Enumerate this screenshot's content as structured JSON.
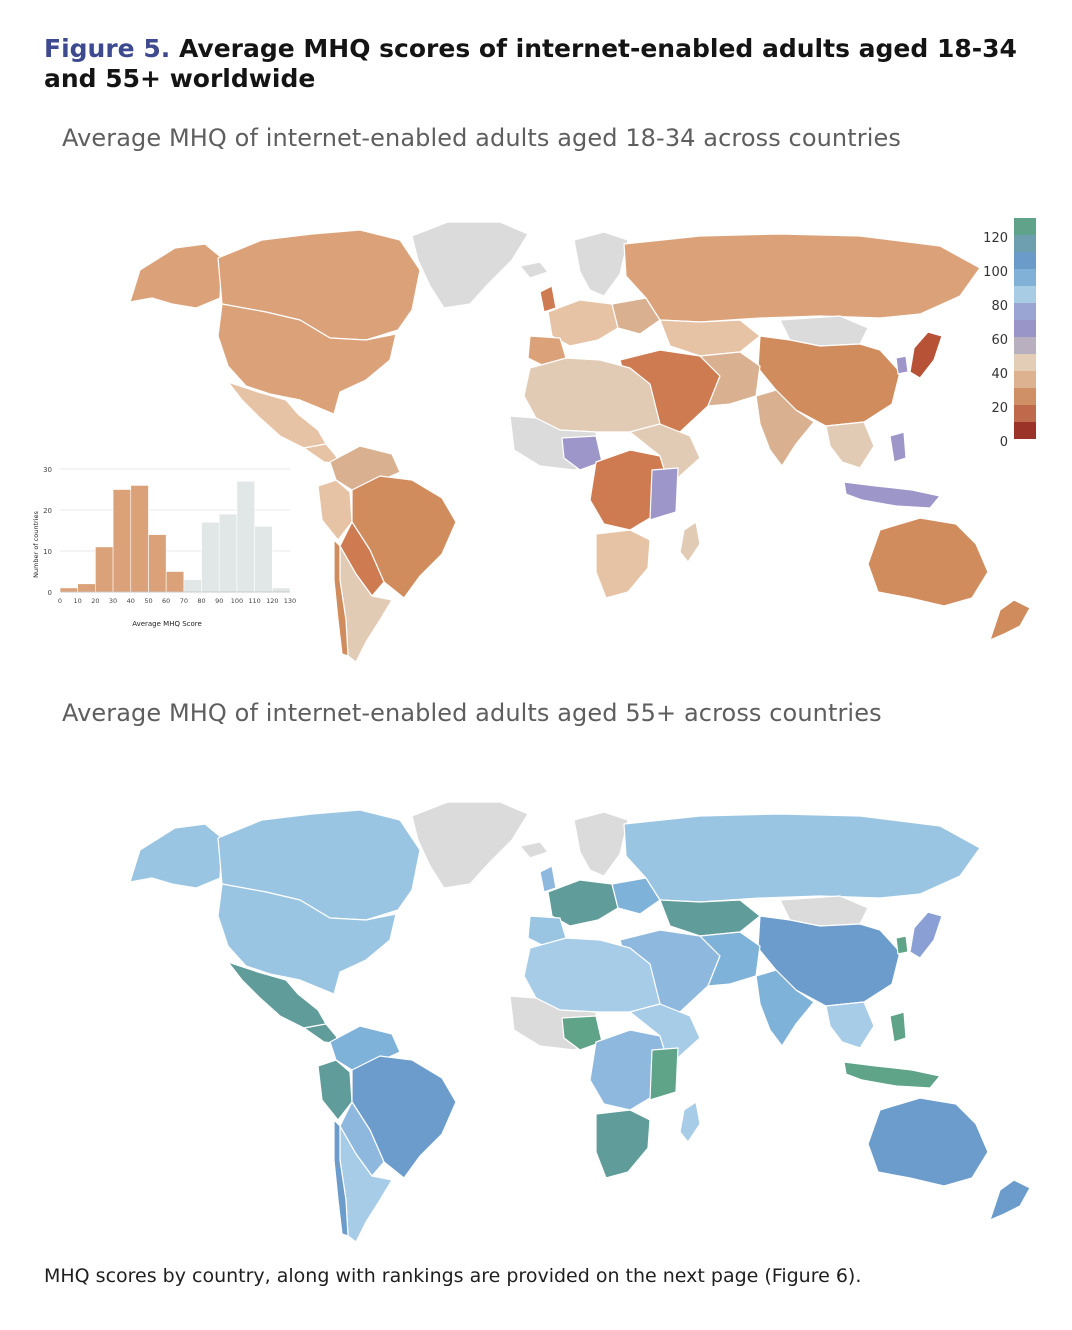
{
  "figure": {
    "number": "Figure 5.",
    "title": "Average MHQ scores of internet-enabled adults aged 18-34 and 55+ worldwide"
  },
  "maps": [
    {
      "heading": "Average MHQ of internet-enabled adults aged 18-34 across countries",
      "palette": "warm"
    },
    {
      "heading": "Average MHQ of internet-enabled adults aged 55+ across countries",
      "palette": "cool"
    }
  ],
  "legend": {
    "tick_labels": [
      "120",
      "100",
      "80",
      "60",
      "40",
      "20",
      "0"
    ],
    "swatches": [
      "#5fa38a",
      "#6d9fae",
      "#6b9bc9",
      "#82b1d8",
      "#a8cce3",
      "#9ba5d4",
      "#9a95c8",
      "#b8b0be",
      "#e4cdb6",
      "#dcb291",
      "#cf9065",
      "#c06a4c",
      "#9c3328"
    ]
  },
  "chart_data": {
    "type": "bar",
    "title": "",
    "xlabel": "Average MHQ Score",
    "ylabel": "Number of countries",
    "x_ticks": [
      "0",
      "10",
      "20",
      "30",
      "40",
      "50",
      "60",
      "70",
      "80",
      "90",
      "100",
      "110",
      "120",
      "130"
    ],
    "y_ticks": [
      "0",
      "10",
      "20",
      "30"
    ],
    "ylim": [
      0,
      30
    ],
    "xlim": [
      0,
      130
    ],
    "bin_width": 10,
    "series": [
      {
        "name": "18-34",
        "color": "#dba27a",
        "bins": [
          [
            0,
            1
          ],
          [
            10,
            2
          ],
          [
            20,
            11
          ],
          [
            30,
            25
          ],
          [
            40,
            26
          ],
          [
            50,
            14
          ],
          [
            60,
            5
          ]
        ]
      },
      {
        "name": "55+",
        "color": "#e1e6e6",
        "bins": [
          [
            70,
            3
          ],
          [
            80,
            17
          ],
          [
            90,
            19
          ],
          [
            100,
            27
          ],
          [
            110,
            16
          ],
          [
            120,
            1
          ]
        ]
      }
    ],
    "grid": true
  },
  "footer": "MHQ scores by country, along with rankings are provided on the next page (Figure 6)."
}
